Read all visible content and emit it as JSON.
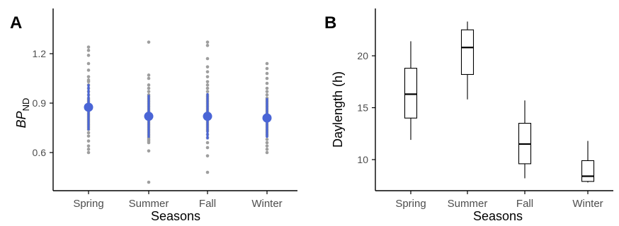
{
  "figure_colors": {
    "axis": "#000000",
    "tick_text": "#4d4d4d",
    "point_gray": "#9e9e9e",
    "mean_blue": "#4a65d6",
    "box_stroke": "#000000"
  },
  "chart_data": [
    {
      "panel_label": "A",
      "type": "scatter",
      "title": "",
      "xlabel": "Seasons",
      "ylabel_main": "BP",
      "ylabel_sub": "ND",
      "categories": [
        "Spring",
        "Summer",
        "Fall",
        "Winter"
      ],
      "ylim": [
        0.4,
        1.35
      ],
      "yticks": [
        0.6,
        0.9,
        1.2
      ],
      "ytick_labels": [
        "0.6",
        "0.9",
        "1.2"
      ],
      "grid": false,
      "points": [
        [
          1.24,
          1.22,
          1.19,
          1.14,
          1.1,
          1.06,
          1.04,
          1.03,
          1.01,
          0.99,
          0.97,
          0.95,
          0.93,
          0.92,
          0.91,
          0.9,
          0.89,
          0.88,
          0.87,
          0.86,
          0.85,
          0.84,
          0.83,
          0.82,
          0.81,
          0.8,
          0.79,
          0.78,
          0.77,
          0.76,
          0.75,
          0.74,
          0.72,
          0.7,
          0.67,
          0.64,
          0.62,
          0.6
        ],
        [
          1.27,
          1.07,
          1.05,
          1.01,
          0.99,
          0.97,
          0.95,
          0.94,
          0.93,
          0.92,
          0.91,
          0.9,
          0.89,
          0.88,
          0.87,
          0.86,
          0.85,
          0.84,
          0.83,
          0.82,
          0.81,
          0.8,
          0.79,
          0.78,
          0.77,
          0.76,
          0.75,
          0.74,
          0.73,
          0.72,
          0.71,
          0.7,
          0.69,
          0.68,
          0.67,
          0.66,
          0.61,
          0.42
        ],
        [
          1.27,
          1.25,
          1.17,
          1.12,
          1.09,
          1.06,
          1.03,
          1.01,
          0.99,
          0.97,
          0.95,
          0.94,
          0.93,
          0.92,
          0.91,
          0.9,
          0.89,
          0.88,
          0.87,
          0.86,
          0.85,
          0.84,
          0.83,
          0.82,
          0.81,
          0.8,
          0.79,
          0.78,
          0.77,
          0.76,
          0.75,
          0.74,
          0.73,
          0.71,
          0.69,
          0.66,
          0.63,
          0.58,
          0.48
        ],
        [
          1.14,
          1.11,
          1.08,
          1.05,
          1.02,
          0.99,
          0.97,
          0.95,
          0.93,
          0.92,
          0.91,
          0.9,
          0.89,
          0.88,
          0.87,
          0.86,
          0.85,
          0.84,
          0.83,
          0.82,
          0.81,
          0.8,
          0.79,
          0.78,
          0.77,
          0.76,
          0.75,
          0.74,
          0.73,
          0.72,
          0.71,
          0.7,
          0.68,
          0.66,
          0.64,
          0.62,
          0.6
        ]
      ],
      "mean": [
        0.875,
        0.82,
        0.82,
        0.81
      ],
      "sd": [
        0.14,
        0.13,
        0.14,
        0.12
      ]
    },
    {
      "panel_label": "B",
      "type": "box",
      "title": "",
      "xlabel": "Seasons",
      "ylabel": "Daylength (h)",
      "categories": [
        "Spring",
        "Summer",
        "Fall",
        "Winter"
      ],
      "ylim": [
        7,
        24
      ],
      "yticks": [
        10,
        15,
        20
      ],
      "ytick_labels": [
        "10",
        "15",
        "20"
      ],
      "grid": false,
      "boxes": [
        {
          "min": 11.9,
          "q1": 14.0,
          "median": 16.3,
          "q3": 18.8,
          "max": 21.4
        },
        {
          "min": 15.8,
          "q1": 18.2,
          "median": 20.8,
          "q3": 22.5,
          "max": 23.3
        },
        {
          "min": 8.2,
          "q1": 9.6,
          "median": 11.5,
          "q3": 13.5,
          "max": 15.7
        },
        {
          "min": 7.8,
          "q1": 7.9,
          "median": 8.4,
          "q3": 9.9,
          "max": 11.8
        }
      ]
    }
  ]
}
